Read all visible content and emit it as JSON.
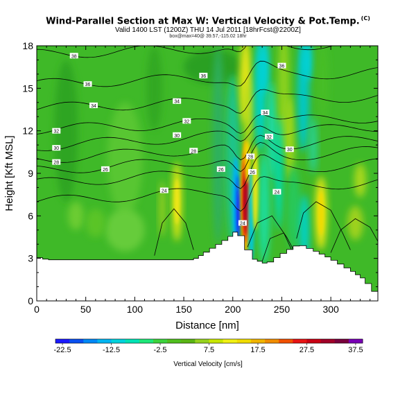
{
  "title": "Wind-Parallel Section at Max W: Vertical Velocity & Pot.Temp.",
  "copyright": "(C)",
  "subtitle": "Valid 1400 LST (1200Z) THU 14 Jul 2011 [18hrFcst@2200Z]",
  "subtitle2": "box@max=40@ 39.57,-115.02 18hr",
  "chart_data": {
    "type": "heatmap",
    "xlabel": "Distance [nm]",
    "ylabel": "Height [Kft MSL]",
    "xlim": [
      0,
      348
    ],
    "ylim": [
      0,
      18
    ],
    "xticks": [
      0,
      50,
      100,
      150,
      200,
      250,
      300
    ],
    "yticks": [
      0,
      3,
      6,
      9,
      12,
      15,
      18
    ],
    "terrain_profile": [
      [
        0,
        3.1
      ],
      [
        12,
        2.9
      ],
      [
        160,
        2.9
      ],
      [
        170,
        3.3
      ],
      [
        195,
        4.4
      ],
      [
        205,
        5.0
      ],
      [
        212,
        4.2
      ],
      [
        220,
        3.0
      ],
      [
        235,
        2.6
      ],
      [
        255,
        3.5
      ],
      [
        268,
        4.0
      ],
      [
        282,
        3.6
      ],
      [
        300,
        3.0
      ],
      [
        320,
        2.2
      ],
      [
        335,
        1.5
      ],
      [
        348,
        0.4
      ]
    ],
    "isentropes": [
      {
        "label": "24",
        "label_x": 130,
        "label_y": 7.8
      },
      {
        "label": "26",
        "label_x": 70,
        "label_y": 9.3
      },
      {
        "label": "28",
        "label_x": 20,
        "label_y": 9.8
      },
      {
        "label": "30",
        "label_x": 20,
        "label_y": 10.8
      },
      {
        "label": "32",
        "label_x": 20,
        "label_y": 12.0
      },
      {
        "label": "34",
        "label_x": 58,
        "label_y": 13.8
      },
      {
        "label": "36",
        "label_x": 52,
        "label_y": 15.3
      },
      {
        "label": "38",
        "label_x": 38,
        "label_y": 17.3
      }
    ],
    "contour_labels": [
      {
        "text": "38",
        "x": 38,
        "y": 17.3
      },
      {
        "text": "36",
        "x": 52,
        "y": 15.3
      },
      {
        "text": "34",
        "x": 58,
        "y": 13.8
      },
      {
        "text": "32",
        "x": 20,
        "y": 12.0
      },
      {
        "text": "30",
        "x": 20,
        "y": 10.8
      },
      {
        "text": "28",
        "x": 20,
        "y": 9.8
      },
      {
        "text": "26",
        "x": 70,
        "y": 9.3
      },
      {
        "text": "24",
        "x": 130,
        "y": 7.8
      },
      {
        "text": "36",
        "x": 170,
        "y": 15.9
      },
      {
        "text": "34",
        "x": 143,
        "y": 14.1
      },
      {
        "text": "32",
        "x": 153,
        "y": 12.7
      },
      {
        "text": "30",
        "x": 143,
        "y": 11.7
      },
      {
        "text": "28",
        "x": 160,
        "y": 10.6
      },
      {
        "text": "26",
        "x": 188,
        "y": 9.3
      },
      {
        "text": "28",
        "x": 218,
        "y": 10.2
      },
      {
        "text": "26",
        "x": 220,
        "y": 9.1
      },
      {
        "text": "24",
        "x": 210,
        "y": 5.5
      },
      {
        "text": "24",
        "x": 245,
        "y": 7.7
      },
      {
        "text": "30",
        "x": 258,
        "y": 10.7
      },
      {
        "text": "32",
        "x": 237,
        "y": 11.6
      },
      {
        "text": "34",
        "x": 233,
        "y": 13.3
      },
      {
        "text": "36",
        "x": 250,
        "y": 16.6
      }
    ],
    "colorbar": {
      "label": "Vertical Velocity [cm/s]",
      "ticks": [
        "-22.5",
        "-12.5",
        "-2.5",
        "7.5",
        "17.5",
        "27.5",
        "37.5"
      ],
      "colors": [
        "#1a1aff",
        "#0a50f0",
        "#0088f5",
        "#00b4f0",
        "#00d2dc",
        "#00e2b4",
        "#1ee678",
        "#3cd23c",
        "#50be1e",
        "#5ab414",
        "#96d21e",
        "#c8e600",
        "#f0f014",
        "#f0dc00",
        "#f0b400",
        "#f08c00",
        "#f05000",
        "#e61414",
        "#c80014",
        "#a00028",
        "#78003c",
        "#7800b4"
      ]
    },
    "velocity_features": [
      {
        "desc": "downdraft",
        "x": 206,
        "y": 6.8,
        "value": -22.5
      },
      {
        "desc": "updraft",
        "x": 213,
        "y": 7.3,
        "value": 37.5
      },
      {
        "desc": "updraft",
        "x": 143,
        "y": 7.0,
        "value": 17.5
      },
      {
        "desc": "updraft",
        "x": 290,
        "y": 6.2,
        "value": 17.5
      }
    ]
  }
}
